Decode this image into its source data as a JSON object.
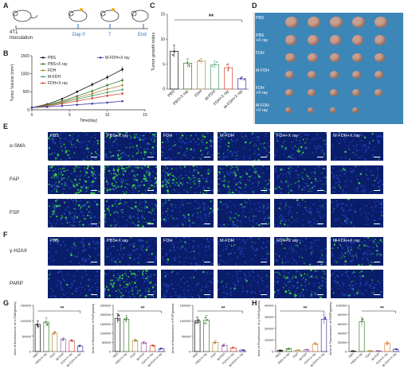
{
  "panel_letters": [
    "A",
    "B",
    "C",
    "D",
    "E",
    "F",
    "G",
    "H"
  ],
  "schema": {
    "inoculation": "4T1\nInoculation",
    "day0": "Day 0",
    "day7": "7",
    "end": "End",
    "accent": "#2a6ebb"
  },
  "photo": {
    "labels": [
      "PBS",
      "PBS\n+X ray",
      "FDH",
      "M-FDH",
      "FDH\n+X ray",
      "M-FDH\n+X ray"
    ],
    "counts": [
      5,
      5,
      5,
      5,
      5,
      4
    ],
    "background": "#3d86b8",
    "tumor_color": "#c9a090"
  },
  "microscopy": {
    "columns": [
      "PBS",
      "PBS+X ray",
      "FDH",
      "M-FDH",
      "FDH+X ray",
      "M-FDH+X ray"
    ],
    "rows_E": [
      "α-SMA",
      "FAP",
      "FSP"
    ],
    "rows_F": [
      "γ-H2AX",
      "PARP"
    ],
    "green_density": {
      "α-SMA": [
        0.35,
        0.45,
        0.25,
        0.2,
        0.15,
        0.08
      ],
      "FAP": [
        0.75,
        0.8,
        0.55,
        0.45,
        0.3,
        0.12
      ],
      "FSP": [
        0.35,
        0.4,
        0.2,
        0.18,
        0.12,
        0.06
      ],
      "γ-H2AX": [
        0.05,
        0.12,
        0.05,
        0.06,
        0.15,
        0.35
      ],
      "PARP": [
        0.05,
        0.55,
        0.05,
        0.05,
        0.4,
        0.15
      ]
    },
    "tile_bg": "#0a1d6b",
    "signal_color": "#3ddc3d"
  },
  "chart_data": [
    {
      "panel": "B",
      "type": "line",
      "xlabel": "Time(day)",
      "ylabel": "Tumor Volume (mm³)",
      "xlim": [
        0,
        15
      ],
      "ylim": [
        0,
        1500
      ],
      "xticks": [
        0,
        5,
        10,
        15
      ],
      "yticks": [
        0,
        500,
        1000,
        1500
      ],
      "x": [
        0,
        2,
        4,
        6,
        8,
        10,
        12
      ],
      "series": [
        {
          "name": "PBS",
          "color": "#111111",
          "values": [
            60,
            150,
            300,
            500,
            700,
            900,
            1120
          ]
        },
        {
          "name": "PBS+X ray",
          "color": "#3a7a2a",
          "values": [
            60,
            130,
            240,
            380,
            520,
            680,
            820
          ]
        },
        {
          "name": "FDH",
          "color": "#b08a3a",
          "values": [
            60,
            120,
            220,
            330,
            450,
            570,
            680
          ]
        },
        {
          "name": "M-FDH",
          "color": "#4fa06a",
          "values": [
            60,
            110,
            200,
            290,
            390,
            480,
            560
          ]
        },
        {
          "name": "FDH+X ray",
          "color": "#d04a3a",
          "values": [
            60,
            100,
            170,
            240,
            320,
            390,
            450
          ]
        },
        {
          "name": "M-FDH+X ray",
          "color": "#3a3aa8",
          "values": [
            60,
            80,
            110,
            140,
            170,
            200,
            240
          ]
        }
      ]
    },
    {
      "panel": "C",
      "type": "bar",
      "ylabel": "Tumor growth index",
      "ylim": [
        0,
        15
      ],
      "yticks": [
        0,
        5,
        10,
        15
      ],
      "categories": [
        "PBS",
        "PBS+X ray",
        "FDH",
        "M-FDH",
        "FDH+X ray",
        "M-FDH+X ray"
      ],
      "values": [
        7.6,
        5.2,
        5.6,
        4.9,
        4.3,
        2.1
      ],
      "errors": [
        1.2,
        0.9,
        0.5,
        0.7,
        0.8,
        0.4
      ],
      "colors": [
        "#111111",
        "#3a7a2a",
        "#b08a3a",
        "#4fa06a",
        "#d04a3a",
        "#3a3aa8"
      ],
      "significance": "**"
    },
    {
      "panel": "G1",
      "type": "bar",
      "ylabel": "Area of fluorescence of α-SMA(pixels)",
      "ylim": [
        0,
        150000
      ],
      "yticks": [
        0,
        50000,
        100000,
        150000
      ],
      "categories": [
        "PBS",
        "PBS+X ray",
        "FDH",
        "M-FDH",
        "FDH+X ray",
        "M-FDH+X ray"
      ],
      "values": [
        88000,
        96000,
        60000,
        40000,
        35000,
        18000
      ],
      "errors": [
        12000,
        14000,
        6000,
        5000,
        4000,
        3000
      ],
      "colors": [
        "#111111",
        "#3a7a2a",
        "#b08a3a",
        "#9a5aa8",
        "#d04a3a",
        "#3a3aa8"
      ],
      "significance": "**"
    },
    {
      "panel": "G2",
      "type": "bar",
      "ylabel": "Area of fluorescence of FAP(pixels)",
      "ylim": [
        0,
        250000
      ],
      "yticks": [
        0,
        50000,
        100000,
        150000,
        200000,
        250000
      ],
      "categories": [
        "PBS",
        "PBS+X ray",
        "FDH",
        "M-FDH",
        "FDH+X ray",
        "M-FDH+X ray"
      ],
      "values": [
        180000,
        175000,
        60000,
        48000,
        32000,
        15000
      ],
      "errors": [
        25000,
        20000,
        8000,
        6000,
        5000,
        3000
      ],
      "colors": [
        "#111111",
        "#3a7a2a",
        "#b08a3a",
        "#9a5aa8",
        "#d04a3a",
        "#3a3aa8"
      ],
      "significance": "**"
    },
    {
      "panel": "G3",
      "type": "bar",
      "ylabel": "Area of fluorescence of FSP(pixels)",
      "ylim": [
        0,
        150000
      ],
      "yticks": [
        0,
        50000,
        100000,
        150000
      ],
      "categories": [
        "PBS",
        "PBS+X ray",
        "FDH",
        "M-FDH",
        "FDH+X ray",
        "M-FDH+X ray"
      ],
      "values": [
        100000,
        102000,
        30000,
        20000,
        12000,
        5000
      ],
      "errors": [
        12000,
        15000,
        5000,
        4000,
        3000,
        1500
      ],
      "colors": [
        "#111111",
        "#3a7a2a",
        "#b08a3a",
        "#9a5aa8",
        "#d04a3a",
        "#3a3aa8"
      ],
      "significance": "**"
    },
    {
      "panel": "H1",
      "type": "bar",
      "ylabel": "Area of Fluorescence of γ-H2AX(pixels)",
      "ylim": [
        0,
        40000
      ],
      "yticks": [
        0,
        10000,
        20000,
        30000,
        40000
      ],
      "categories": [
        "PBS",
        "PBS+X ray",
        "FDH",
        "M-FDH",
        "FDH+X ray",
        "M-FDH+X ray"
      ],
      "values": [
        1000,
        2500,
        1200,
        1500,
        6500,
        28000
      ],
      "errors": [
        300,
        500,
        300,
        400,
        1200,
        4000
      ],
      "colors": [
        "#111111",
        "#3a7a2a",
        "#b08a3a",
        "#9a5aa8",
        "#e07a2a",
        "#3a3aa8"
      ],
      "significance": "**"
    },
    {
      "panel": "H2",
      "type": "bar",
      "ylabel": "Area of Fluorescence of PARP(pixels)",
      "ylim": [
        0,
        100000
      ],
      "yticks": [
        0,
        20000,
        40000,
        60000,
        80000,
        100000
      ],
      "categories": [
        "PBS",
        "PBS+X ray",
        "FDH",
        "M-FDH",
        "FDH+X ray",
        "M-FDH+X ray"
      ],
      "values": [
        1000,
        65000,
        1500,
        1500,
        18000,
        5000
      ],
      "errors": [
        300,
        9000,
        400,
        400,
        3000,
        1200
      ],
      "colors": [
        "#111111",
        "#3a7a2a",
        "#b08a3a",
        "#9a5aa8",
        "#e07a2a",
        "#3a3aa8"
      ],
      "significance": "**"
    }
  ]
}
